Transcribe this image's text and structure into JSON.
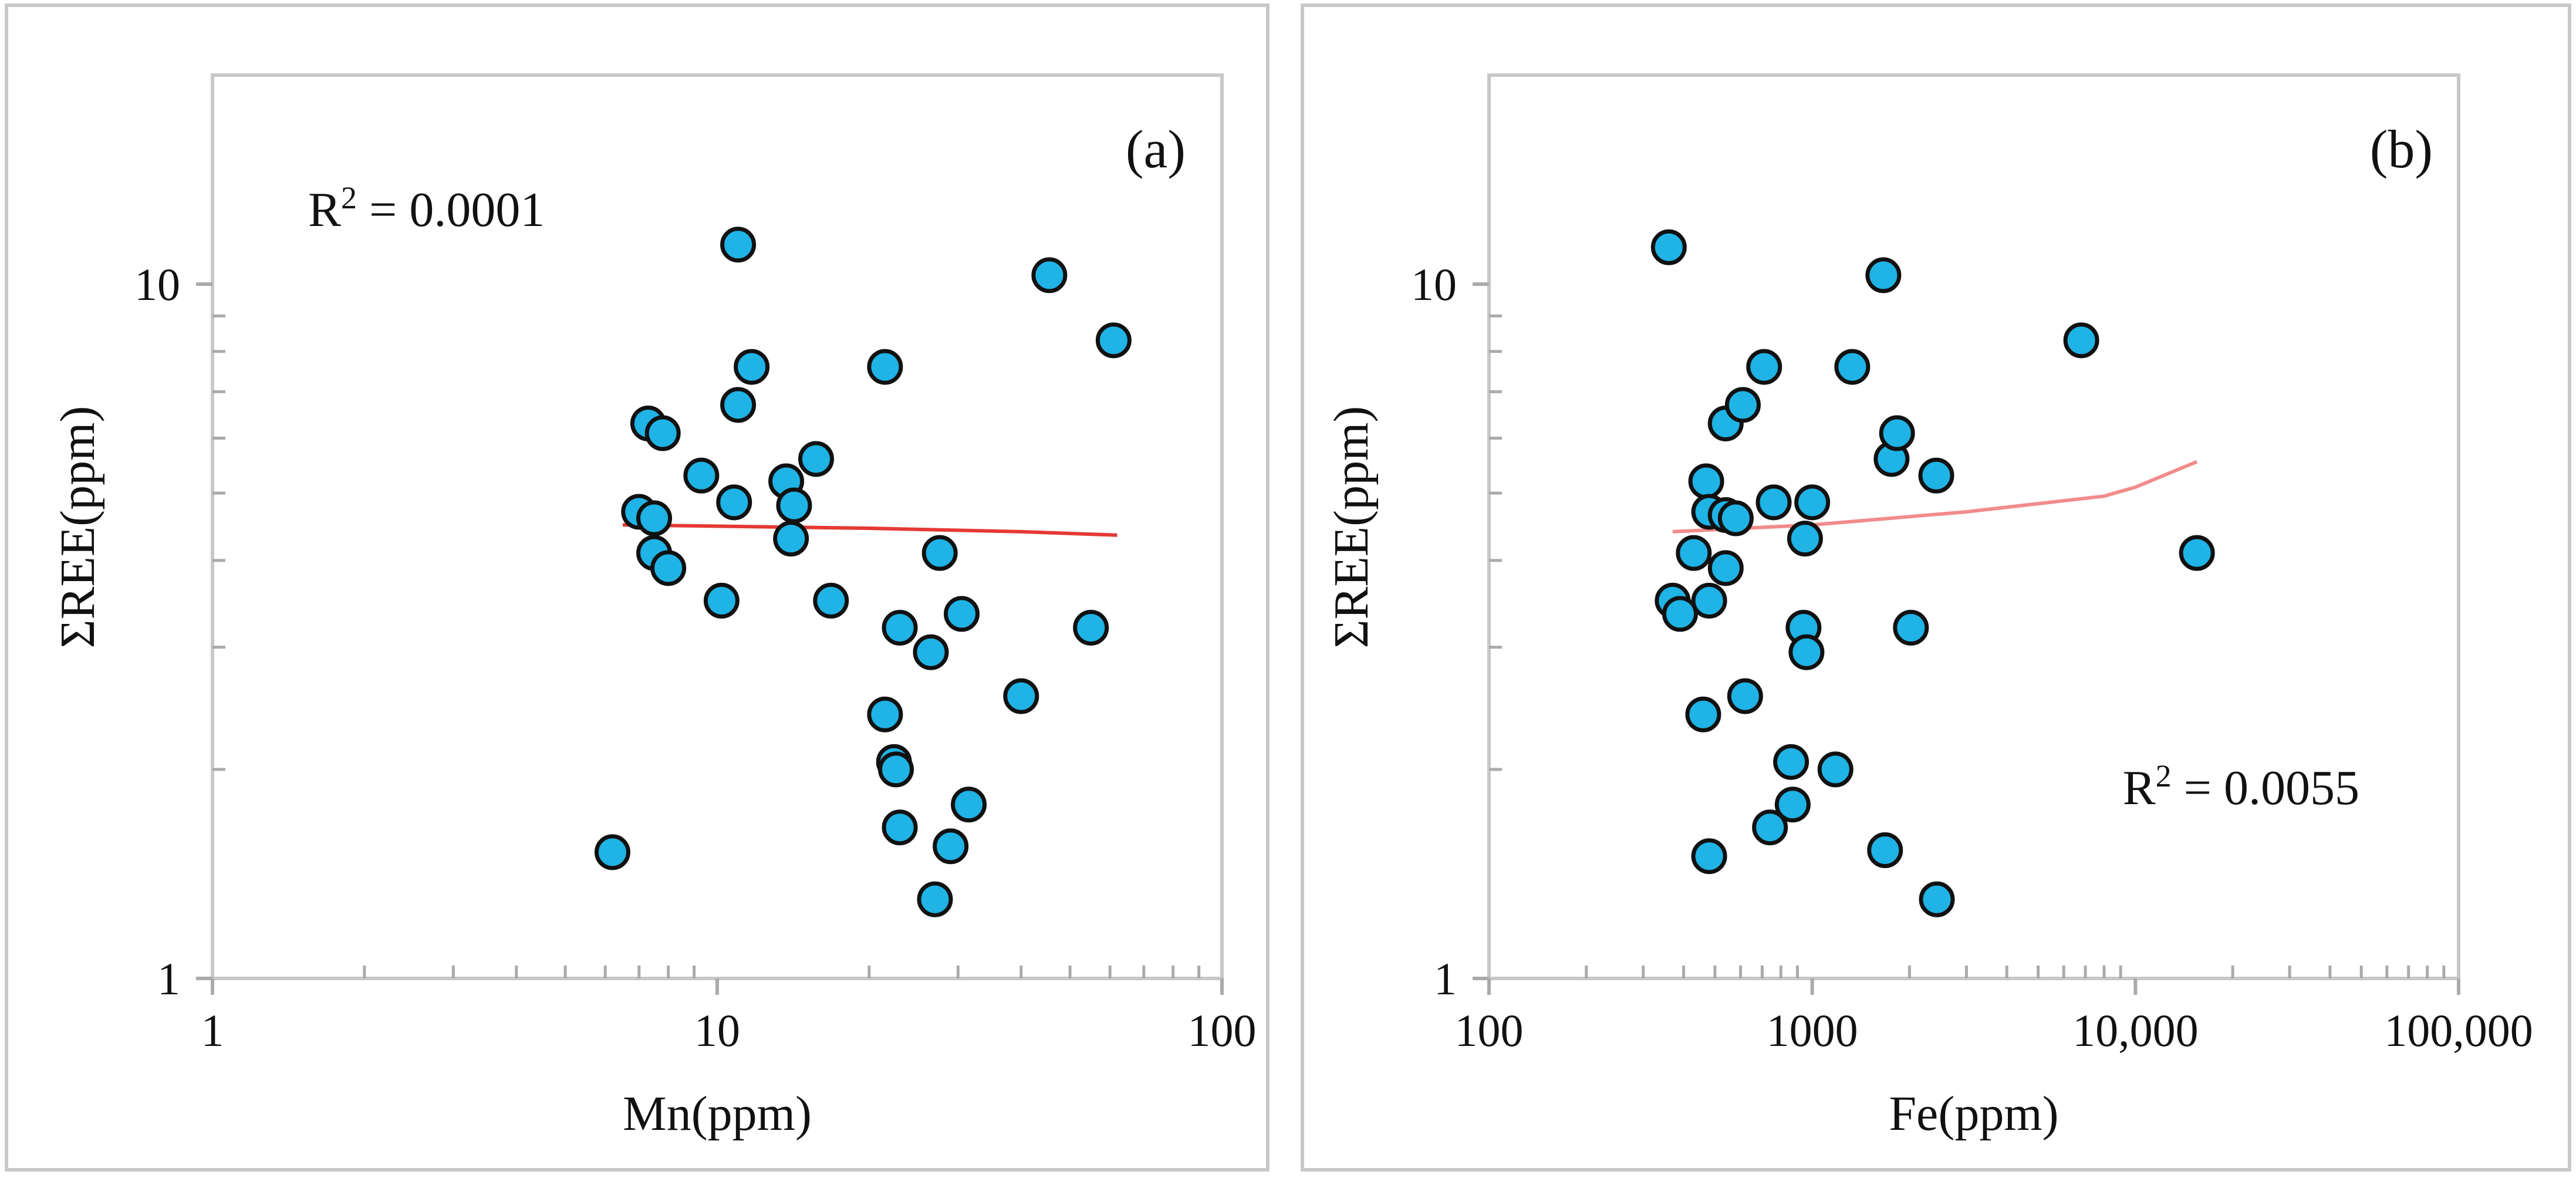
{
  "chart_data": [
    {
      "type": "scatter",
      "panel_label": "(a)",
      "xlabel": "Mn(ppm)",
      "ylabel": "ΣREE(ppm)",
      "xscale": "log",
      "yscale": "log",
      "xlim": [
        1,
        100
      ],
      "ylim": [
        1,
        20
      ],
      "x_tick_labels": [
        "1",
        "10",
        "100"
      ],
      "x_tick_values": [
        1,
        10,
        100
      ],
      "y_tick_labels": [
        "1",
        "10"
      ],
      "y_tick_values": [
        1,
        10
      ],
      "annotation": {
        "r2_prefix": "R",
        "r2_sup": "2",
        "r2_value": " = 0.0001",
        "placement": "top-left"
      },
      "trendline": {
        "color": "#e53935",
        "points": [
          [
            6.5,
            4.5
          ],
          [
            20,
            4.45
          ],
          [
            40,
            4.4
          ],
          [
            62,
            4.35
          ]
        ]
      },
      "marker": {
        "fill": "#1fb3e6",
        "stroke": "#111111"
      },
      "points": [
        {
          "x": 6.2,
          "y": 1.52
        },
        {
          "x": 7.0,
          "y": 4.7
        },
        {
          "x": 7.3,
          "y": 6.3
        },
        {
          "x": 7.5,
          "y": 4.6
        },
        {
          "x": 7.5,
          "y": 4.1
        },
        {
          "x": 7.8,
          "y": 6.1
        },
        {
          "x": 8.0,
          "y": 3.9
        },
        {
          "x": 9.3,
          "y": 5.3
        },
        {
          "x": 10.2,
          "y": 3.5
        },
        {
          "x": 10.8,
          "y": 4.85
        },
        {
          "x": 11.0,
          "y": 11.4
        },
        {
          "x": 11.0,
          "y": 6.7
        },
        {
          "x": 11.7,
          "y": 7.6
        },
        {
          "x": 13.7,
          "y": 5.2
        },
        {
          "x": 14.0,
          "y": 4.3
        },
        {
          "x": 14.2,
          "y": 4.8
        },
        {
          "x": 15.7,
          "y": 5.6
        },
        {
          "x": 16.8,
          "y": 3.5
        },
        {
          "x": 21.5,
          "y": 7.6
        },
        {
          "x": 21.5,
          "y": 2.4
        },
        {
          "x": 22.4,
          "y": 2.05
        },
        {
          "x": 22.6,
          "y": 2.0
        },
        {
          "x": 23.0,
          "y": 3.2
        },
        {
          "x": 23.0,
          "y": 1.65
        },
        {
          "x": 26.5,
          "y": 2.95
        },
        {
          "x": 27.0,
          "y": 1.3
        },
        {
          "x": 27.6,
          "y": 4.1
        },
        {
          "x": 29.0,
          "y": 1.55
        },
        {
          "x": 30.5,
          "y": 3.35
        },
        {
          "x": 31.5,
          "y": 1.78
        },
        {
          "x": 40.0,
          "y": 2.55
        },
        {
          "x": 45.5,
          "y": 10.3
        },
        {
          "x": 55.0,
          "y": 3.2
        },
        {
          "x": 61.0,
          "y": 8.3
        }
      ]
    },
    {
      "type": "scatter",
      "panel_label": "(b)",
      "xlabel": "Fe(ppm)",
      "ylabel": "ΣREE(ppm)",
      "xscale": "log",
      "yscale": "log",
      "xlim": [
        100,
        100000
      ],
      "ylim": [
        1,
        20
      ],
      "x_tick_labels": [
        "100",
        "1000",
        "10,000",
        "100,000"
      ],
      "x_tick_values": [
        100,
        1000,
        10000,
        100000
      ],
      "y_tick_labels": [
        "1",
        "10"
      ],
      "y_tick_values": [
        1,
        10
      ],
      "annotation": {
        "r2_prefix": "R",
        "r2_sup": "2",
        "r2_value": " = 0.0055",
        "placement": "bottom-right"
      },
      "trendline": {
        "color": "#f28b8b",
        "points": [
          [
            370,
            4.4
          ],
          [
            1000,
            4.5
          ],
          [
            3000,
            4.7
          ],
          [
            8000,
            4.95
          ],
          [
            10000,
            5.1
          ],
          [
            15500,
            5.55
          ]
        ]
      },
      "marker": {
        "fill": "#1fb3e6",
        "stroke": "#111111"
      },
      "points": [
        {
          "x": 360,
          "y": 11.3
        },
        {
          "x": 370,
          "y": 3.5
        },
        {
          "x": 390,
          "y": 3.35
        },
        {
          "x": 430,
          "y": 4.1
        },
        {
          "x": 460,
          "y": 2.4
        },
        {
          "x": 470,
          "y": 5.2
        },
        {
          "x": 480,
          "y": 4.7
        },
        {
          "x": 480,
          "y": 3.5
        },
        {
          "x": 480,
          "y": 1.5
        },
        {
          "x": 540,
          "y": 6.3
        },
        {
          "x": 540,
          "y": 4.65
        },
        {
          "x": 540,
          "y": 3.9
        },
        {
          "x": 580,
          "y": 4.6
        },
        {
          "x": 610,
          "y": 6.7
        },
        {
          "x": 620,
          "y": 2.55
        },
        {
          "x": 710,
          "y": 7.6
        },
        {
          "x": 740,
          "y": 1.65
        },
        {
          "x": 760,
          "y": 4.85
        },
        {
          "x": 860,
          "y": 2.05
        },
        {
          "x": 870,
          "y": 1.78
        },
        {
          "x": 940,
          "y": 3.2
        },
        {
          "x": 950,
          "y": 4.3
        },
        {
          "x": 960,
          "y": 2.95
        },
        {
          "x": 1000,
          "y": 4.85
        },
        {
          "x": 1180,
          "y": 2.0
        },
        {
          "x": 1330,
          "y": 7.6
        },
        {
          "x": 1660,
          "y": 10.3
        },
        {
          "x": 1680,
          "y": 1.53
        },
        {
          "x": 1760,
          "y": 5.6
        },
        {
          "x": 1830,
          "y": 6.1
        },
        {
          "x": 2020,
          "y": 3.2
        },
        {
          "x": 2420,
          "y": 5.3
        },
        {
          "x": 2430,
          "y": 1.3
        },
        {
          "x": 6800,
          "y": 8.3
        },
        {
          "x": 15500,
          "y": 4.1
        }
      ]
    }
  ]
}
